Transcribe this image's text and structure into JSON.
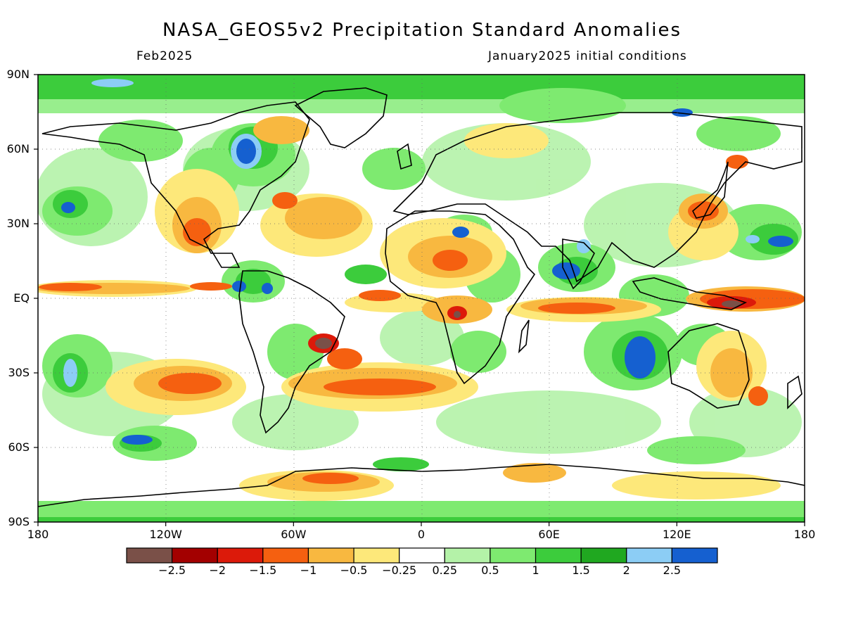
{
  "title": "NASA_GEOS5v2 Precipitation Standard Anomalies",
  "subtitle_left": "Feb2025",
  "subtitle_right": "January2025 initial conditions",
  "lat_labels": [
    "90N",
    "60N",
    "30N",
    "EQ",
    "30S",
    "60S",
    "90S"
  ],
  "lon_labels": [
    "180",
    "120W",
    "60W",
    "0",
    "60E",
    "120E",
    "180"
  ],
  "colorbar": {
    "colors": [
      "#7a5048",
      "#a30000",
      "#dc1a0a",
      "#f56010",
      "#f8b840",
      "#fde87a",
      "#ffffff",
      "#b4f2a8",
      "#7eea70",
      "#3ccc3c",
      "#20a820",
      "#8ccdf5",
      "#1560d0"
    ],
    "labels": [
      "−2.5",
      "−2",
      "−1.5",
      "−1",
      "−0.5",
      "−0.25",
      "0.25",
      "0.5",
      "1",
      "1.5",
      "2",
      "2.5"
    ]
  },
  "chart_data": {
    "type": "heatmap",
    "title": "NASA_GEOS5v2 Precipitation Standard Anomalies",
    "xlabel": "",
    "ylabel": "",
    "xlim": [
      -180,
      180
    ],
    "ylim": [
      -90,
      90
    ],
    "x_ticks": [
      "180",
      "120W",
      "60W",
      "0",
      "60E",
      "120E",
      "180"
    ],
    "y_ticks": [
      "90N",
      "60N",
      "30N",
      "EQ",
      "30S",
      "60S",
      "90S"
    ],
    "color_levels": [
      -2.5,
      -2,
      -1.5,
      -1,
      -0.5,
      -0.25,
      0.25,
      0.5,
      1,
      1.5,
      2,
      2.5
    ],
    "anomaly_regions": [
      {
        "lon": -90,
        "lat": 60,
        "value": 2.5
      },
      {
        "lon": -55,
        "lat": 40,
        "value": -1.5
      },
      {
        "lon": -105,
        "lat": 25,
        "value": -1.5
      },
      {
        "lon": -130,
        "lat": 5,
        "value": -1
      },
      {
        "lon": -80,
        "lat": 5,
        "value": 2.5
      },
      {
        "lon": -45,
        "lat": -15,
        "value": -2.5
      },
      {
        "lon": -30,
        "lat": -30,
        "value": -1.5
      },
      {
        "lon": -100,
        "lat": -30,
        "value": -1.5
      },
      {
        "lon": 15,
        "lat": 15,
        "value": -1
      },
      {
        "lon": 25,
        "lat": -5,
        "value": -2
      },
      {
        "lon": 85,
        "lat": 15,
        "value": 2.5
      },
      {
        "lon": 80,
        "lat": -3,
        "value": -1.5
      },
      {
        "lon": 100,
        "lat": -25,
        "value": 2.5
      },
      {
        "lon": 145,
        "lat": -3,
        "value": -2.5
      },
      {
        "lon": 130,
        "lat": 35,
        "value": -1.5
      },
      {
        "lon": 160,
        "lat": -37,
        "value": -1.5
      },
      {
        "lon": 35,
        "lat": 15,
        "value": 1
      },
      {
        "lon": -20,
        "lat": 65,
        "value": -0.5
      },
      {
        "lon": 145,
        "lat": -75,
        "value": -1
      },
      {
        "lon": -40,
        "lat": -72,
        "value": -1
      }
    ]
  }
}
